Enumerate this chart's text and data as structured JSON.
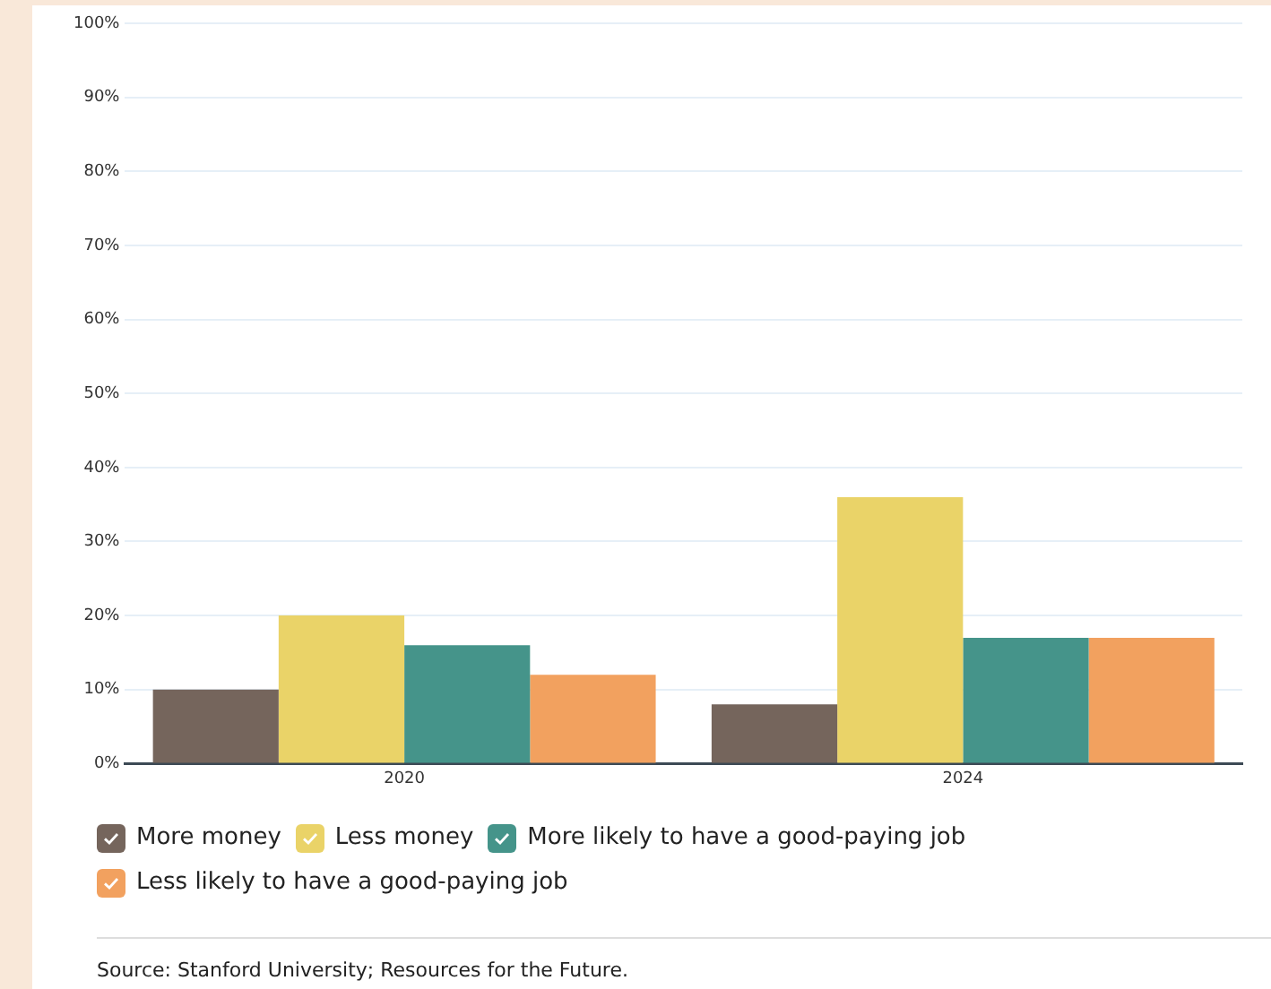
{
  "chart_data": {
    "type": "bar",
    "categories": [
      "2020",
      "2024"
    ],
    "series": [
      {
        "name": "More money",
        "color": "#75655c",
        "values": [
          10,
          8
        ]
      },
      {
        "name": "Less money",
        "color": "#ead368",
        "values": [
          20,
          36
        ]
      },
      {
        "name": "More likely to have a good-paying job",
        "color": "#45948a",
        "values": [
          16,
          17
        ]
      },
      {
        "name": "Less likely to have a good-paying job",
        "color": "#f2a15f",
        "values": [
          12,
          17
        ]
      }
    ],
    "ylim": [
      0,
      100
    ],
    "yticks": [
      {
        "value": 0,
        "label": "0%"
      },
      {
        "value": 10,
        "label": "10%"
      },
      {
        "value": 20,
        "label": "20%"
      },
      {
        "value": 30,
        "label": "30%"
      },
      {
        "value": 40,
        "label": "40%"
      },
      {
        "value": 50,
        "label": "50%"
      },
      {
        "value": 60,
        "label": "60%"
      },
      {
        "value": 70,
        "label": "70%"
      },
      {
        "value": 80,
        "label": "80%"
      },
      {
        "value": 90,
        "label": "90%"
      },
      {
        "value": 100,
        "label": "100%"
      }
    ],
    "grid": "y",
    "legend": "bottom",
    "annotations": [
      "Source: Stanford University; Resources for the Future."
    ]
  }
}
